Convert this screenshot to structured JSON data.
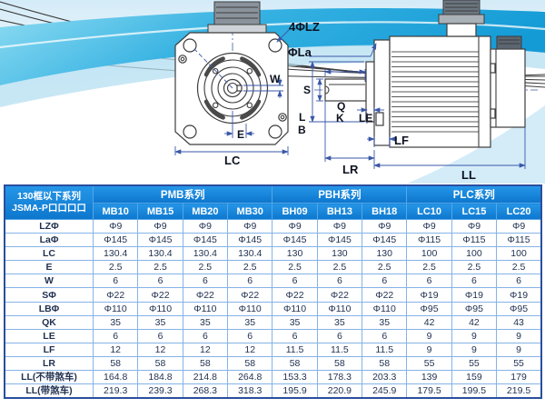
{
  "colors": {
    "header_bg_top": "#2596e8",
    "header_bg_bottom": "#0d77cd",
    "table_outer_border": "#2a4e9e",
    "table_grid": "#85b3e6",
    "swoosh_dark": "#149bd6",
    "swoosh_light": "#8edcf2",
    "dim_line": "#3a57a8",
    "drawing_line": "#3c3c3c"
  },
  "drawing": {
    "front_view": {
      "labels": {
        "holes": "4ΦLZ",
        "flange_dia": "ΦLa",
        "key_width": "W",
        "e": "E",
        "lc": "LC"
      }
    },
    "side_view": {
      "labels": {
        "s": "S",
        "q": "Q",
        "k": "K",
        "le": "LE",
        "l": "L",
        "b": "B",
        "lf": "LF",
        "lr": "LR",
        "ll": "LL"
      }
    }
  },
  "table": {
    "corner": {
      "line1": "130框以下系列",
      "line2": "JSMA-P口口口口"
    },
    "groups": [
      {
        "label": "PMB系列",
        "columns": [
          "MB10",
          "MB15",
          "MB20",
          "MB30"
        ]
      },
      {
        "label": "PBH系列",
        "columns": [
          "BH09",
          "BH13",
          "BH18"
        ]
      },
      {
        "label": "PLC系列",
        "columns": [
          "LC10",
          "LC15",
          "LC20"
        ]
      }
    ],
    "rows": [
      {
        "label": "LZΦ",
        "values": [
          "Φ9",
          "Φ9",
          "Φ9",
          "Φ9",
          "Φ9",
          "Φ9",
          "Φ9",
          "Φ9",
          "Φ9",
          "Φ9"
        ]
      },
      {
        "label": "LaΦ",
        "values": [
          "Φ145",
          "Φ145",
          "Φ145",
          "Φ145",
          "Φ145",
          "Φ145",
          "Φ145",
          "Φ115",
          "Φ115",
          "Φ115"
        ]
      },
      {
        "label": "LC",
        "values": [
          "130.4",
          "130.4",
          "130.4",
          "130.4",
          "130",
          "130",
          "130",
          "100",
          "100",
          "100"
        ]
      },
      {
        "label": "E",
        "values": [
          "2.5",
          "2.5",
          "2.5",
          "2.5",
          "2.5",
          "2.5",
          "2.5",
          "2.5",
          "2.5",
          "2.5"
        ]
      },
      {
        "label": "W",
        "values": [
          "6",
          "6",
          "6",
          "6",
          "6",
          "6",
          "6",
          "6",
          "6",
          "6"
        ]
      },
      {
        "label": "SΦ",
        "values": [
          "Φ22",
          "Φ22",
          "Φ22",
          "Φ22",
          "Φ22",
          "Φ22",
          "Φ22",
          "Φ19",
          "Φ19",
          "Φ19"
        ]
      },
      {
        "label": "LBΦ",
        "values": [
          "Φ110",
          "Φ110",
          "Φ110",
          "Φ110",
          "Φ110",
          "Φ110",
          "Φ110",
          "Φ95",
          "Φ95",
          "Φ95"
        ]
      },
      {
        "label": "QK",
        "values": [
          "35",
          "35",
          "35",
          "35",
          "35",
          "35",
          "35",
          "42",
          "42",
          "43"
        ]
      },
      {
        "label": "LE",
        "values": [
          "6",
          "6",
          "6",
          "6",
          "6",
          "6",
          "6",
          "9",
          "9",
          "9"
        ]
      },
      {
        "label": "LF",
        "values": [
          "12",
          "12",
          "12",
          "12",
          "11.5",
          "11.5",
          "11.5",
          "9",
          "9",
          "9"
        ]
      },
      {
        "label": "LR",
        "values": [
          "58",
          "58",
          "58",
          "58",
          "58",
          "58",
          "58",
          "55",
          "55",
          "55"
        ]
      },
      {
        "label": "LL(不带煞车)",
        "values": [
          "164.8",
          "184.8",
          "214.8",
          "264.8",
          "153.3",
          "178.3",
          "203.3",
          "139",
          "159",
          "179"
        ]
      },
      {
        "label": "LL(带煞车)",
        "values": [
          "219.3",
          "239.3",
          "268.3",
          "318.3",
          "195.9",
          "220.9",
          "245.9",
          "179.5",
          "199.5",
          "219.5"
        ]
      }
    ]
  }
}
